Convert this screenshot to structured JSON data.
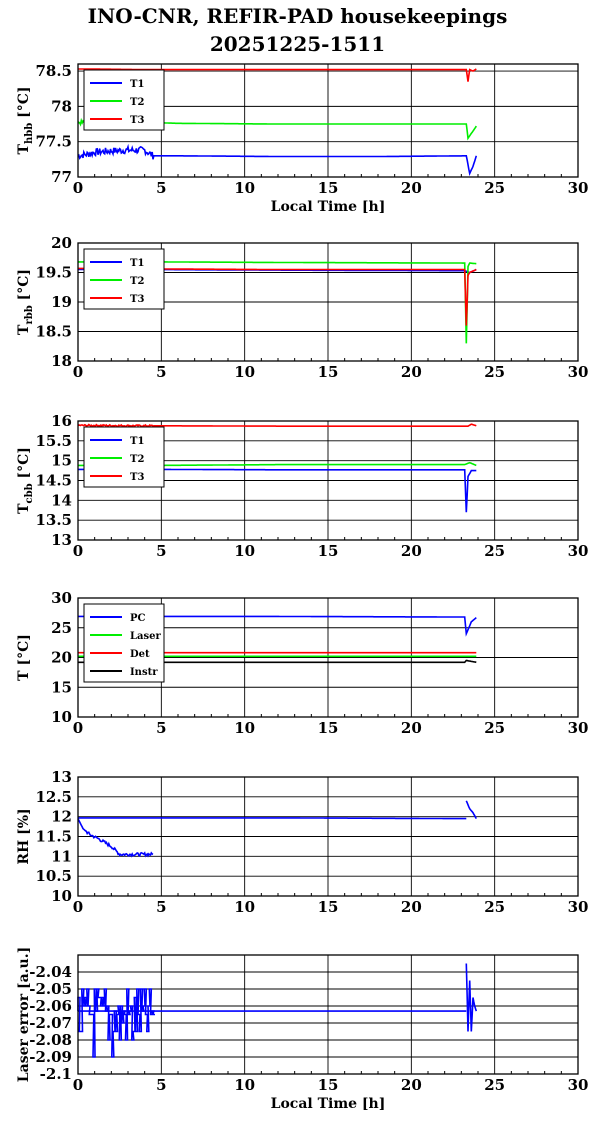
{
  "header": {
    "title_line1": "INO-CNR, REFIR-PAD housekeepings",
    "title_line2": "20251225-1511"
  },
  "colors": {
    "blue": "#0000ff",
    "green": "#00ee00",
    "red": "#ff0000",
    "black": "#000000"
  },
  "chart_data": [
    {
      "type": "line",
      "ylabel": "T",
      "ylabel_sub": "hbb",
      "ylabel_unit": " [°C]",
      "xlabel": "Local Time [h]",
      "xlim": [
        0,
        30
      ],
      "ylim": [
        77,
        78.6
      ],
      "yticks": [
        77,
        77.5,
        78,
        78.5
      ],
      "yticklabels": [
        "77",
        "77.5",
        "78",
        "78.5"
      ],
      "xticks": [
        0,
        5,
        10,
        15,
        20,
        25,
        30
      ],
      "xticklabels": [
        "0",
        "5",
        "10",
        "15",
        "20",
        "25",
        "30"
      ],
      "grid": true,
      "legend_loc": "top-left",
      "series": [
        {
          "name": "T1",
          "color": "#0000ff",
          "noise": [
            [
              0,
              4.5,
              0.05
            ]
          ],
          "x": [
            0,
            0.5,
            1,
            2,
            3,
            4,
            4.5,
            6,
            12,
            18,
            23.3,
            23.5,
            23.7,
            23.9
          ],
          "y": [
            77.3,
            77.32,
            77.35,
            77.37,
            77.38,
            77.38,
            77.3,
            77.3,
            77.29,
            77.29,
            77.3,
            77.05,
            77.15,
            77.3
          ]
        },
        {
          "name": "T2",
          "color": "#00ee00",
          "noise": [
            [
              0,
              4.5,
              0.03
            ]
          ],
          "x": [
            0,
            4.5,
            6,
            12,
            18,
            23.3,
            23.4,
            23.7,
            23.9
          ],
          "y": [
            77.77,
            77.77,
            77.76,
            77.75,
            77.75,
            77.75,
            77.55,
            77.65,
            77.72
          ]
        },
        {
          "name": "T3",
          "color": "#ff0000",
          "noise": [],
          "x": [
            0,
            4.5,
            12,
            18,
            23.3,
            23.4,
            23.5,
            23.7,
            23.9
          ],
          "y": [
            78.53,
            78.52,
            78.52,
            78.52,
            78.52,
            78.35,
            78.52,
            78.5,
            78.53
          ]
        }
      ]
    },
    {
      "type": "line",
      "ylabel": "T",
      "ylabel_sub": "rbb",
      "ylabel_unit": " [°C]",
      "xlabel": "",
      "xlim": [
        0,
        30
      ],
      "ylim": [
        18,
        20
      ],
      "yticks": [
        18,
        18.5,
        19,
        19.5,
        20
      ],
      "yticklabels": [
        "18",
        "18.5",
        "19",
        "19.5",
        "20"
      ],
      "xticks": [
        0,
        5,
        10,
        15,
        20,
        25,
        30
      ],
      "xticklabels": [
        "0",
        "5",
        "10",
        "15",
        "20",
        "25",
        "30"
      ],
      "grid": true,
      "legend_loc": "top-left",
      "series": [
        {
          "name": "T1",
          "color": "#0000ff",
          "noise": [],
          "x": [
            0,
            4.5,
            12,
            23.2,
            23.5,
            23.9
          ],
          "y": [
            19.55,
            19.55,
            19.54,
            19.53,
            19.5,
            19.55
          ]
        },
        {
          "name": "T2",
          "color": "#00ee00",
          "noise": [],
          "x": [
            0,
            4.5,
            12,
            23.2,
            23.3,
            23.4,
            23.5,
            23.9
          ],
          "y": [
            19.68,
            19.68,
            19.67,
            19.66,
            18.3,
            19.6,
            19.66,
            19.65
          ]
        },
        {
          "name": "T3",
          "color": "#ff0000",
          "noise": [],
          "x": [
            0,
            4.5,
            12,
            23.2,
            23.3,
            23.4,
            23.5,
            23.9
          ],
          "y": [
            19.57,
            19.56,
            19.55,
            19.55,
            18.6,
            19.45,
            19.5,
            19.55
          ]
        }
      ]
    },
    {
      "type": "line",
      "ylabel": "T",
      "ylabel_sub": "cbb",
      "ylabel_unit": " [°C]",
      "xlabel": "",
      "xlim": [
        0,
        30
      ],
      "ylim": [
        13,
        16
      ],
      "yticks": [
        13,
        13.5,
        14,
        14.5,
        15,
        15.5,
        16
      ],
      "yticklabels": [
        "13",
        "13.5",
        "14",
        "14.5",
        "15",
        "15.5",
        "16"
      ],
      "xticks": [
        0,
        5,
        10,
        15,
        20,
        25,
        30
      ],
      "xticklabels": [
        "0",
        "5",
        "10",
        "15",
        "20",
        "25",
        "30"
      ],
      "grid": true,
      "legend_loc": "top-left",
      "series": [
        {
          "name": "T1",
          "color": "#0000ff",
          "noise": [],
          "x": [
            0,
            4.5,
            12,
            23.2,
            23.3,
            23.4,
            23.6,
            23.9
          ],
          "y": [
            14.78,
            14.78,
            14.77,
            14.77,
            13.7,
            14.6,
            14.75,
            14.75
          ]
        },
        {
          "name": "T2",
          "color": "#00ee00",
          "noise": [],
          "x": [
            0,
            4.5,
            12,
            23.2,
            23.5,
            23.9
          ],
          "y": [
            14.88,
            14.88,
            14.9,
            14.9,
            14.95,
            14.88
          ]
        },
        {
          "name": "T3",
          "color": "#ff0000",
          "noise": [
            [
              0,
              4.5,
              0.02
            ]
          ],
          "x": [
            0,
            4.5,
            12,
            23.4,
            23.6,
            23.9
          ],
          "y": [
            15.89,
            15.88,
            15.87,
            15.87,
            15.92,
            15.88
          ]
        }
      ]
    },
    {
      "type": "line",
      "ylabel": "T [°C]",
      "ylabel_sub": "",
      "ylabel_unit": "",
      "xlabel": "",
      "xlim": [
        0,
        30
      ],
      "ylim": [
        10,
        30
      ],
      "yticks": [
        10,
        15,
        20,
        25,
        30
      ],
      "yticklabels": [
        "10",
        "15",
        "20",
        "25",
        "30"
      ],
      "xticks": [
        0,
        5,
        10,
        15,
        20,
        25,
        30
      ],
      "xticklabels": [
        "0",
        "5",
        "10",
        "15",
        "20",
        "25",
        "30"
      ],
      "grid": true,
      "legend_loc": "top-left",
      "series": [
        {
          "name": "PC",
          "color": "#0000ff",
          "noise": [],
          "x": [
            0,
            12,
            23.2,
            23.3,
            23.6,
            23.9
          ],
          "y": [
            26.9,
            26.9,
            26.8,
            24,
            26,
            26.7
          ]
        },
        {
          "name": "Laser",
          "color": "#00ee00",
          "noise": [],
          "x": [
            0,
            23.9
          ],
          "y": [
            20.2,
            20.2
          ]
        },
        {
          "name": "Det",
          "color": "#ff0000",
          "noise": [],
          "x": [
            0,
            23.9
          ],
          "y": [
            20.8,
            20.8
          ]
        },
        {
          "name": "Instr",
          "color": "#000000",
          "noise": [],
          "x": [
            0,
            23.2,
            23.3,
            23.9
          ],
          "y": [
            19.2,
            19.2,
            19.5,
            19.2
          ]
        }
      ]
    },
    {
      "type": "line",
      "ylabel": "RH [%]",
      "ylabel_sub": "",
      "ylabel_unit": "",
      "xlabel": "",
      "xlim": [
        0,
        30
      ],
      "ylim": [
        10,
        13
      ],
      "yticks": [
        10,
        10.5,
        11,
        11.5,
        12,
        12.5,
        13
      ],
      "yticklabels": [
        "10",
        "10.5",
        "11",
        "11.5",
        "12",
        "12.5",
        "13"
      ],
      "xticks": [
        0,
        5,
        10,
        15,
        20,
        25,
        30
      ],
      "xticklabels": [
        "0",
        "5",
        "10",
        "15",
        "20",
        "25",
        "30"
      ],
      "grid": true,
      "legend_loc": "none",
      "series": [
        {
          "name": "",
          "color": "#0000ff",
          "noise": [
            [
              0.5,
              4.5,
              0.04
            ]
          ],
          "x": [
            0,
            0.3,
            0.7,
            1.2,
            2,
            2.5,
            3,
            3.5,
            4,
            4.5
          ],
          "y": [
            11.95,
            11.7,
            11.55,
            11.45,
            11.25,
            11.05,
            11.05,
            11.05,
            11.05,
            11.05
          ]
        },
        {
          "name": "",
          "color": "#0000ff",
          "noise": [],
          "x": [
            0,
            12,
            23.3
          ],
          "y": [
            11.97,
            11.97,
            11.95
          ]
        },
        {
          "name": "",
          "color": "#0000ff",
          "noise": [],
          "x": [
            23.3,
            23.5,
            23.7,
            23.9
          ],
          "y": [
            12.4,
            12.2,
            12.1,
            11.95
          ]
        }
      ]
    },
    {
      "type": "line",
      "ylabel": "Laser error [a.u.]",
      "ylabel_sub": "",
      "ylabel_unit": "",
      "xlabel": "Local Time [h]",
      "xlim": [
        0,
        30
      ],
      "ylim": [
        -2.1,
        -2.03
      ],
      "yticks": [
        -2.1,
        -2.09,
        -2.08,
        -2.07,
        -2.06,
        -2.05,
        -2.04
      ],
      "yticklabels": [
        "-2.1",
        "-2.09",
        "-2.08",
        "-2.07",
        "-2.06",
        "-2.05",
        "-2.04"
      ],
      "xticks": [
        0,
        5,
        10,
        15,
        20,
        25,
        30
      ],
      "xticklabels": [
        "0",
        "5",
        "10",
        "15",
        "20",
        "25",
        "30"
      ],
      "grid": true,
      "legend_loc": "none",
      "series": [
        {
          "name": "",
          "color": "#0000ff",
          "noise": [],
          "x": [
            0,
            23.3
          ],
          "y": [
            -2.063,
            -2.063
          ]
        },
        {
          "name": "",
          "color": "#0000ff",
          "noise": [],
          "x": [
            23.3,
            23.4,
            23.5,
            23.6,
            23.7,
            23.8,
            23.9
          ],
          "y": [
            -2.035,
            -2.075,
            -2.045,
            -2.075,
            -2.055,
            -2.06,
            -2.063
          ]
        }
      ],
      "spikes": {
        "color": "#0000ff",
        "x_start": 0,
        "x_end": 4.5,
        "count": 60,
        "levels": [
          -2.05,
          -2.055,
          -2.06,
          -2.063,
          -2.065,
          -2.07,
          -2.075,
          -2.08,
          -2.09
        ],
        "base": -2.063
      }
    }
  ]
}
